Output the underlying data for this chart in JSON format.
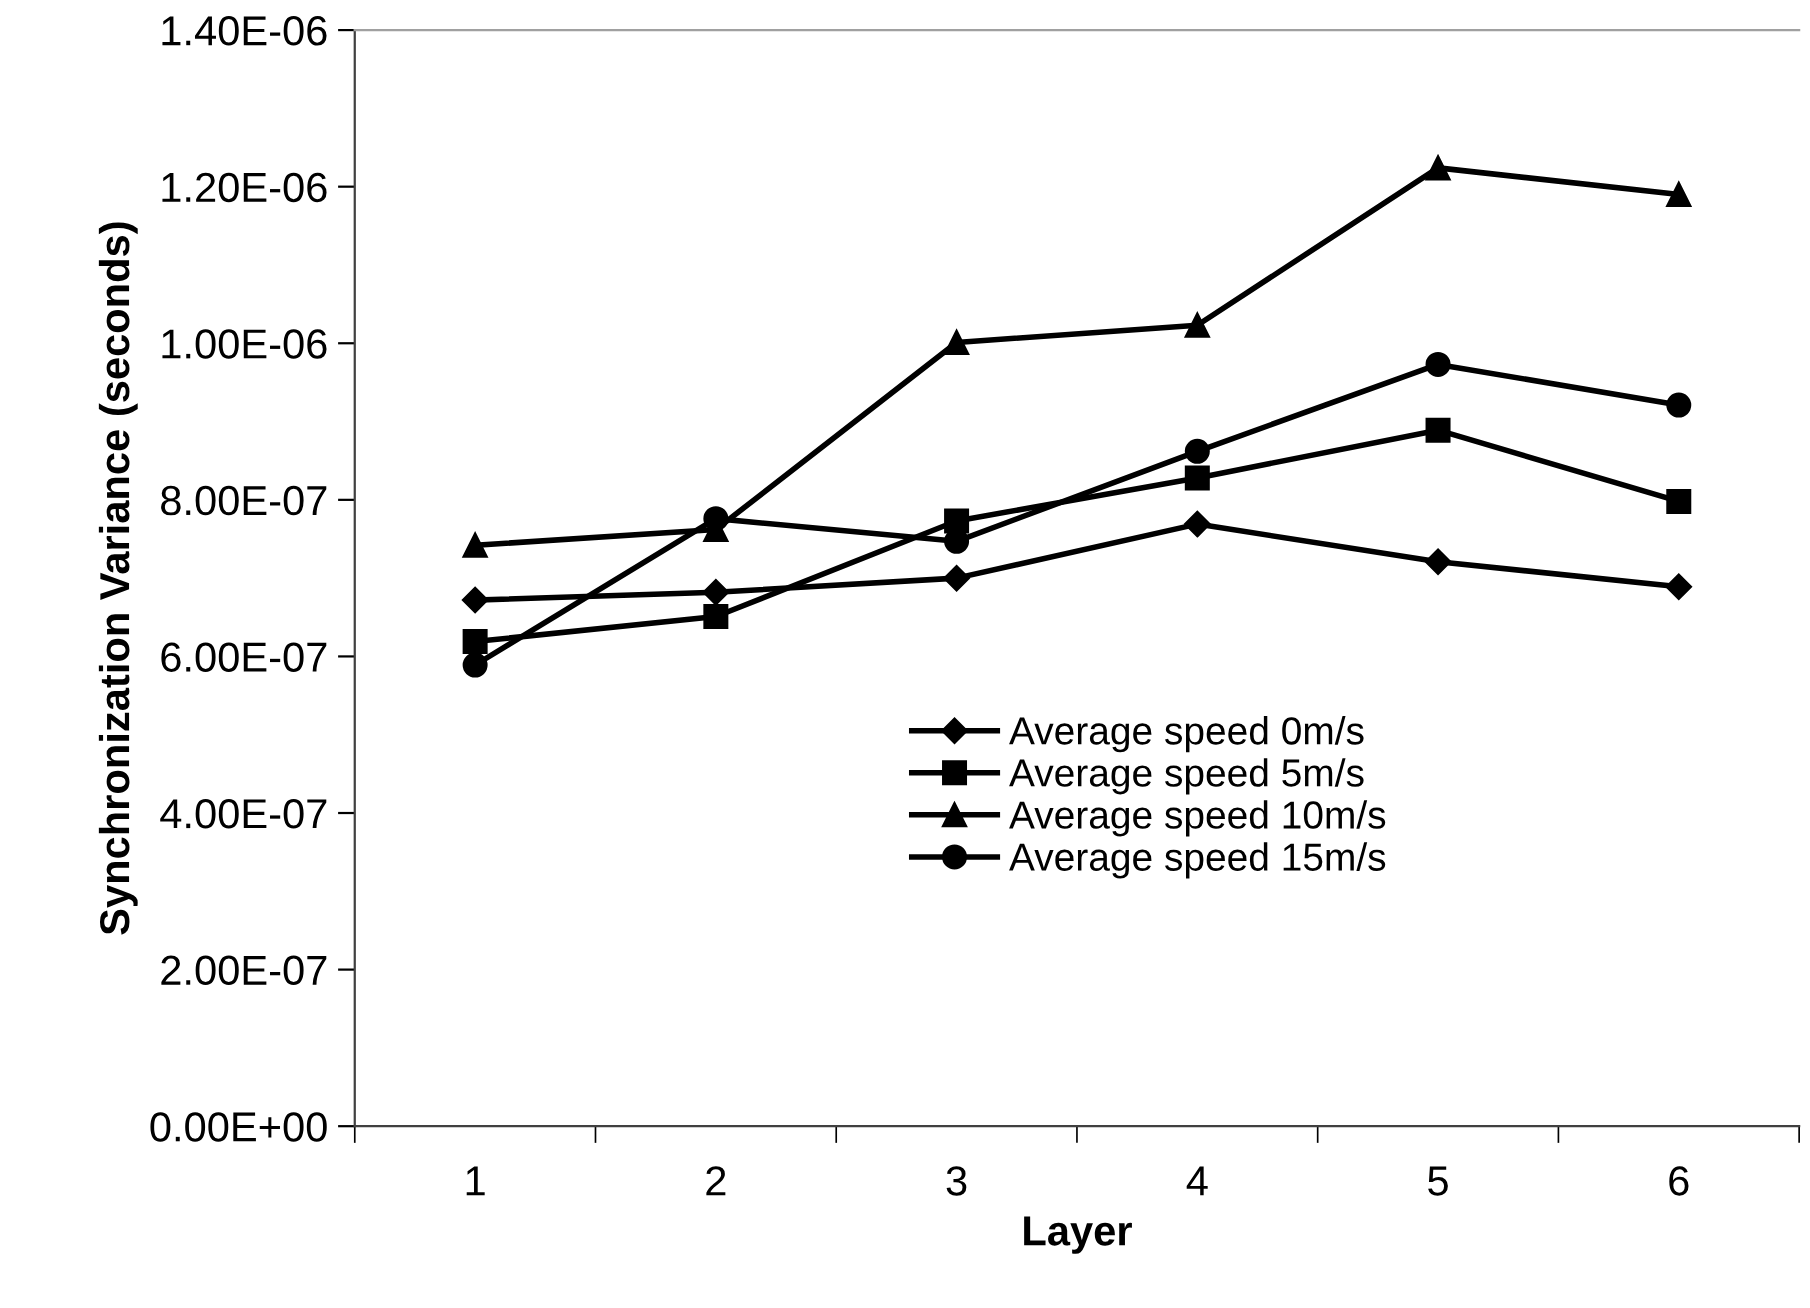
{
  "chart_data": {
    "type": "line",
    "xlabel": "Layer",
    "ylabel": "Synchronization Variance (seconds)",
    "categories": [
      "1",
      "2",
      "3",
      "4",
      "5",
      "6"
    ],
    "series": [
      {
        "name": "Average speed 0m/s",
        "color": "#000000",
        "marker": "diamond",
        "values": [
          6.72e-07,
          6.82e-07,
          7e-07,
          7.69e-07,
          7.21e-07,
          6.89e-07
        ]
      },
      {
        "name": "Average speed 5m/s",
        "color": "#000000",
        "marker": "square",
        "values": [
          6.19e-07,
          6.51e-07,
          7.73e-07,
          8.28e-07,
          8.89e-07,
          7.98e-07
        ]
      },
      {
        "name": "Average speed 10m/s",
        "color": "#000000",
        "marker": "triangle",
        "values": [
          7.42e-07,
          7.62e-07,
          1.001e-06,
          1.023e-06,
          1.224e-06,
          1.19e-06
        ]
      },
      {
        "name": "Average speed 15m/s",
        "color": "#000000",
        "marker": "circle",
        "values": [
          5.89e-07,
          7.76e-07,
          7.47e-07,
          8.62e-07,
          9.73e-07,
          9.21e-07
        ]
      }
    ],
    "ylim": [
      0,
      1.4e-06
    ],
    "yticks": [
      {
        "value": 0,
        "label": "0.00E+00"
      },
      {
        "value": 2e-07,
        "label": "2.00E-07"
      },
      {
        "value": 4e-07,
        "label": "4.00E-07"
      },
      {
        "value": 6e-07,
        "label": "6.00E-07"
      },
      {
        "value": 8e-07,
        "label": "8.00E-07"
      },
      {
        "value": 1e-06,
        "label": "1.00E-06"
      },
      {
        "value": 1.2e-06,
        "label": "1.20E-06"
      },
      {
        "value": 1.4e-06,
        "label": "1.40E-06"
      }
    ],
    "grid": false,
    "legend": "bottom",
    "line_style": "solid"
  }
}
